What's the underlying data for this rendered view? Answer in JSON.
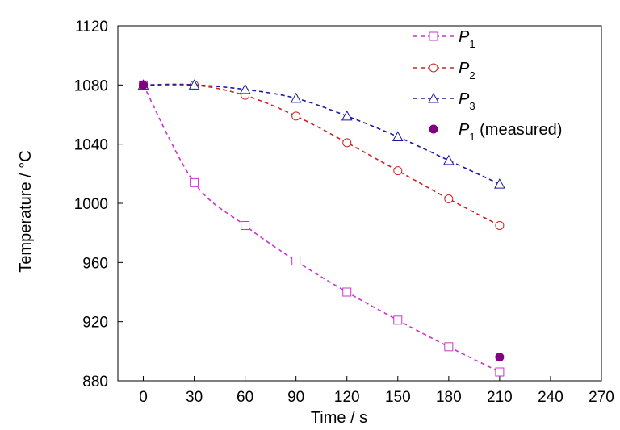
{
  "chart_data": {
    "type": "line",
    "xlabel": "Time / s",
    "ylabel": "Temperature / °C",
    "xlim": [
      -15,
      270
    ],
    "ylim": [
      880,
      1120
    ],
    "xticks": [
      "0",
      "30",
      "60",
      "90",
      "120",
      "150",
      "180",
      "210",
      "240",
      "270"
    ],
    "xtick_values": [
      0,
      30,
      60,
      90,
      120,
      150,
      180,
      210,
      240,
      270
    ],
    "yticks": [
      "880",
      "920",
      "960",
      "1000",
      "1040",
      "1080",
      "1120"
    ],
    "ytick_values": [
      880,
      920,
      960,
      1000,
      1040,
      1080,
      1120
    ],
    "grid": false,
    "legend_position": "top-right",
    "series": [
      {
        "name_base": "P",
        "name_sub": "1",
        "name_suffix": "",
        "color": "#cc33cc",
        "marker": "square-open",
        "line": "dashed",
        "x": [
          0,
          30,
          60,
          90,
          120,
          150,
          180,
          210
        ],
        "y": [
          1080,
          1014,
          985,
          961,
          940,
          921,
          903,
          886
        ]
      },
      {
        "name_base": "P",
        "name_sub": "2",
        "name_suffix": "",
        "color": "#cc2222",
        "marker": "circle-open",
        "line": "dashed",
        "x": [
          0,
          30,
          60,
          90,
          120,
          150,
          180,
          210
        ],
        "y": [
          1080,
          1080,
          1073,
          1059,
          1041,
          1022,
          1003,
          985
        ]
      },
      {
        "name_base": "P",
        "name_sub": "3",
        "name_suffix": "",
        "color": "#1a1aa0",
        "marker": "triangle-open",
        "line": "dashed",
        "x": [
          0,
          30,
          60,
          90,
          120,
          150,
          180,
          210
        ],
        "y": [
          1080,
          1080,
          1077,
          1071,
          1059,
          1045,
          1029,
          1013
        ]
      },
      {
        "name_base": "P",
        "name_sub": "1",
        "name_suffix": " (measured)",
        "color": "#800080",
        "marker": "circle-filled",
        "line": "none",
        "x": [
          0,
          210
        ],
        "y": [
          1080,
          896
        ]
      }
    ]
  }
}
